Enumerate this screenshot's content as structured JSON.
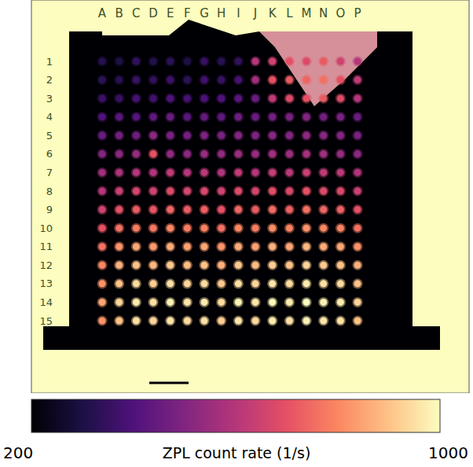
{
  "chart_data": {
    "type": "heatmap",
    "column_labels": [
      "A",
      "B",
      "C",
      "D",
      "E",
      "F",
      "G",
      "H",
      "I",
      "J",
      "K",
      "L",
      "M",
      "N",
      "O",
      "P"
    ],
    "row_labels": [
      1,
      2,
      3,
      4,
      5,
      6,
      7,
      8,
      9,
      10,
      11,
      12,
      13,
      14,
      15
    ],
    "cells": [
      [
        320,
        300,
        340,
        310,
        330,
        300,
        350,
        320,
        340,
        600,
        650,
        700,
        680,
        720,
        650,
        600
      ],
      [
        330,
        320,
        350,
        340,
        360,
        330,
        370,
        350,
        380,
        560,
        700,
        720,
        740,
        760,
        700,
        620
      ],
      [
        360,
        350,
        380,
        370,
        400,
        380,
        390,
        400,
        420,
        450,
        620,
        680,
        700,
        720,
        680,
        600
      ],
      [
        400,
        420,
        410,
        430,
        450,
        420,
        440,
        430,
        460,
        450,
        470,
        480,
        500,
        470,
        480,
        450
      ],
      [
        450,
        470,
        460,
        520,
        480,
        470,
        490,
        480,
        500,
        490,
        510,
        500,
        520,
        510,
        500,
        480
      ],
      [
        500,
        520,
        540,
        700,
        530,
        520,
        540,
        530,
        550,
        540,
        560,
        550,
        570,
        560,
        540,
        520
      ],
      [
        560,
        580,
        600,
        590,
        620,
        600,
        610,
        590,
        620,
        600,
        630,
        610,
        640,
        620,
        610,
        590
      ],
      [
        600,
        640,
        660,
        650,
        680,
        660,
        670,
        650,
        680,
        660,
        690,
        670,
        700,
        680,
        670,
        640
      ],
      [
        650,
        700,
        720,
        710,
        740,
        720,
        730,
        700,
        740,
        720,
        750,
        730,
        760,
        740,
        730,
        700
      ],
      [
        700,
        760,
        780,
        770,
        800,
        780,
        790,
        760,
        800,
        780,
        810,
        790,
        820,
        800,
        790,
        760
      ],
      [
        760,
        820,
        850,
        830,
        860,
        840,
        850,
        820,
        860,
        840,
        870,
        850,
        880,
        860,
        850,
        820
      ],
      [
        800,
        870,
        900,
        880,
        910,
        890,
        900,
        870,
        910,
        890,
        920,
        900,
        930,
        910,
        900,
        870
      ],
      [
        820,
        900,
        940,
        920,
        950,
        930,
        940,
        910,
        950,
        930,
        960,
        940,
        970,
        950,
        940,
        900
      ],
      [
        850,
        930,
        970,
        950,
        980,
        960,
        970,
        940,
        980,
        960,
        990,
        970,
        1000,
        980,
        970,
        930
      ],
      [
        820,
        900,
        950,
        930,
        960,
        940,
        950,
        920,
        960,
        940,
        970,
        950,
        980,
        960,
        950,
        900
      ]
    ],
    "background_count_rate": 1000,
    "membrane_count_rate": 200,
    "colorbar": {
      "label": "ZPL count rate (1/s)",
      "range": [
        200,
        1000
      ],
      "ticks": [
        200,
        1000
      ]
    }
  }
}
